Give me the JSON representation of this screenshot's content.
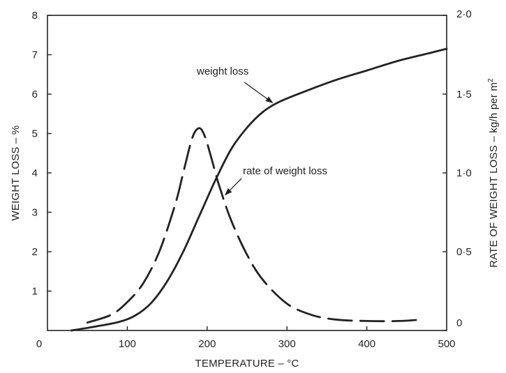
{
  "chart_data": {
    "type": "line",
    "xlabel": "TEMPERATURE – °C",
    "ylabel_left": "WEIGHT LOSS – %",
    "ylabel_right_prefix": "RATE OF WEIGHT LOSS – kg/h per m",
    "ylabel_right_sup": "2",
    "xlim": [
      0,
      500
    ],
    "ylim_left": [
      0,
      8
    ],
    "ylim_right": [
      0,
      2.0
    ],
    "x_ticks": [
      0,
      100,
      200,
      300,
      400,
      500
    ],
    "x_tick_labels": [
      "0",
      "100",
      "200",
      "300",
      "400",
      "500"
    ],
    "y_left_ticks": [
      1,
      2,
      3,
      4,
      5,
      6,
      7,
      8
    ],
    "y_left_tick_labels": [
      "1",
      "2",
      "3",
      "4",
      "5",
      "6",
      "7",
      "8"
    ],
    "y_right_ticks": [
      0,
      0.5,
      1.0,
      1.5,
      2.0
    ],
    "y_right_tick_labels": [
      "0",
      "0·5",
      "1·0",
      "1·5",
      "2·0"
    ],
    "grid": false,
    "series": [
      {
        "name": "weight loss",
        "axis": "left",
        "style": "solid",
        "x": [
          30,
          60,
          90,
          110,
          130,
          150,
          170,
          190,
          210,
          230,
          250,
          270,
          290,
          320,
          360,
          400,
          440,
          470,
          500
        ],
        "y": [
          0,
          0.1,
          0.22,
          0.38,
          0.7,
          1.25,
          2.0,
          2.9,
          3.8,
          4.6,
          5.15,
          5.55,
          5.8,
          6.05,
          6.35,
          6.6,
          6.85,
          7.0,
          7.15
        ]
      },
      {
        "name": "rate of weight loss",
        "axis": "right",
        "style": "dashed",
        "x": [
          50,
          80,
          100,
          120,
          140,
          160,
          170,
          180,
          186,
          192,
          198,
          205,
          215,
          230,
          250,
          270,
          300,
          330,
          360,
          400,
          440,
          470
        ],
        "y": [
          0.05,
          0.1,
          0.18,
          0.3,
          0.5,
          0.8,
          1.0,
          1.2,
          1.27,
          1.28,
          1.22,
          1.1,
          0.92,
          0.7,
          0.48,
          0.32,
          0.17,
          0.1,
          0.07,
          0.06,
          0.06,
          0.07
        ]
      }
    ],
    "annotations": [
      {
        "text": "weight loss",
        "target_series": 0,
        "target_x": 285
      },
      {
        "text": "rate of weight loss",
        "target_series": 1,
        "target_x": 220
      }
    ]
  }
}
